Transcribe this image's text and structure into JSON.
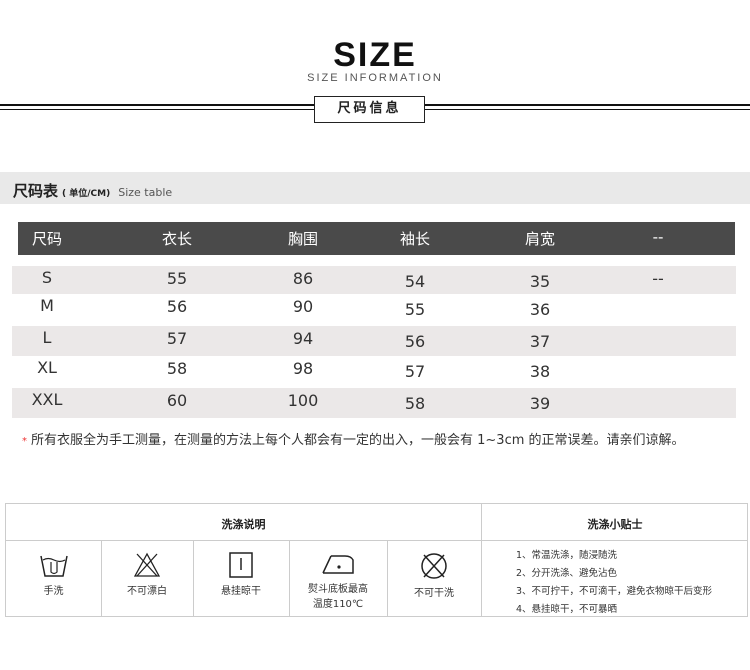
{
  "header": {
    "title": "SIZE",
    "subtitle": "SIZE INFORMATION",
    "badge": "尺码信息"
  },
  "section": {
    "title": "尺码表",
    "unit": "( 单位/CM)",
    "en": "Size table"
  },
  "table": {
    "columns": [
      "尺码",
      "衣长",
      "胸围",
      "袖长",
      "肩宽",
      "--"
    ],
    "rows": [
      [
        "S",
        "55",
        "86",
        "54",
        "35",
        "--"
      ],
      [
        "M",
        "56",
        "90",
        "55",
        "36",
        ""
      ],
      [
        "L",
        "57",
        "94",
        "56",
        "37",
        ""
      ],
      [
        "XL",
        "58",
        "98",
        "57",
        "38",
        ""
      ],
      [
        "XXL",
        "60",
        "100",
        "58",
        "39",
        ""
      ]
    ]
  },
  "note": {
    "star": "*",
    "text": "所有衣服全为手工测量，在测量的方法上每个人都会有一定的出入，一般会有 1~3cm 的正常误差。请亲们谅解。"
  },
  "care": {
    "instructions_title": "洗涤说明",
    "tips_title": "洗涤小贴士",
    "icons": [
      {
        "icon": "hand-wash-icon",
        "label": "手洗"
      },
      {
        "icon": "no-bleach-icon",
        "label": "不可漂白"
      },
      {
        "icon": "hang-dry-icon",
        "label": "悬挂晾干"
      },
      {
        "icon": "iron-icon",
        "label": "熨斗底板最高",
        "label2": "温度110℃"
      },
      {
        "icon": "no-dry-clean-icon",
        "label": "不可干洗"
      }
    ],
    "tips": [
      "1、常温洗涤，随浸随洗",
      "2、分开洗涤、避免沾色",
      "3、不可拧干，不可滴干，避免衣物晾干后变形",
      "4、悬挂晾干，不可暴晒"
    ]
  }
}
